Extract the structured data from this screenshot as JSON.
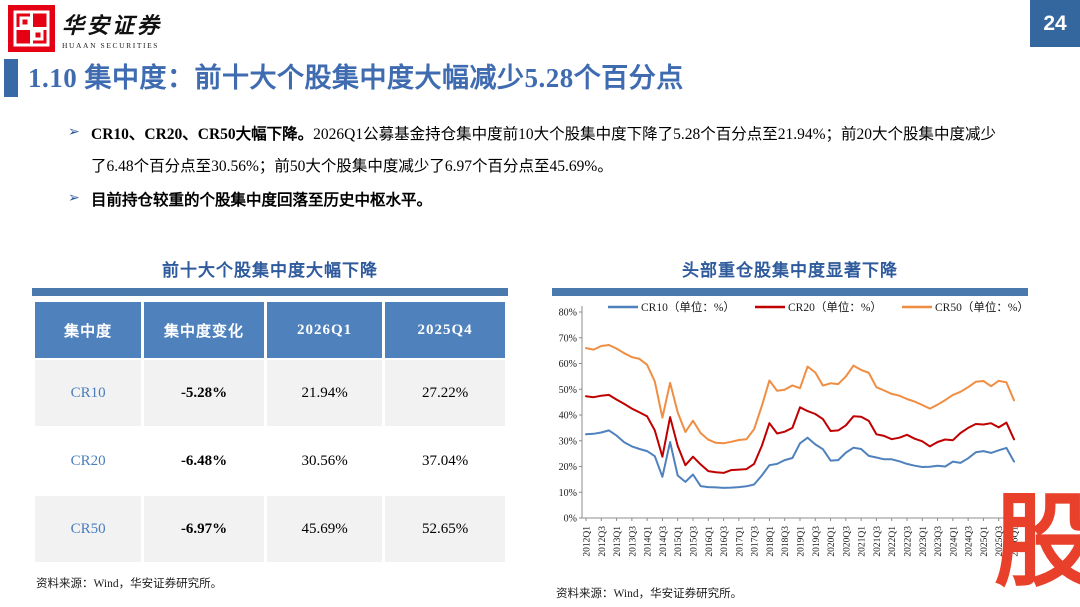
{
  "header": {
    "logo_cn": "华安证券",
    "logo_en": "HUAAN SECURITIES",
    "page_number": "24"
  },
  "title": "1.10 集中度：前十大个股集中度大幅减少5.28个百分点",
  "bullets": {
    "marker": "➢",
    "b1_bold": "CR10、CR20、CR50大幅下降。",
    "b1_text": "2026Q1公募基金持仓集中度前10大个股集中度下降了5.28个百分点至21.94%；前20大个股集中度减少了6.48个百分点至30.56%；前50大个股集中度减少了6.97个百分点至45.69%。",
    "b2_bold": "目前持仓较重的个股集中度回落至历史中枢水平。"
  },
  "table_panel": {
    "title": "前十大个股集中度大幅下降",
    "headers": [
      "集中度",
      "集中度变化",
      "2026Q1",
      "2025Q4"
    ],
    "rows": [
      [
        "CR10",
        "-5.28%",
        "21.94%",
        "27.22%"
      ],
      [
        "CR20",
        "-6.48%",
        "30.56%",
        "37.04%"
      ],
      [
        "CR50",
        "-6.97%",
        "45.69%",
        "52.65%"
      ]
    ],
    "source": "资料来源：Wind，华安证券研究所。"
  },
  "chart_panel": {
    "title": "头部重仓股集中度显著下降",
    "source": "资料来源：Wind，华安证券研究所。"
  },
  "chart_data": {
    "type": "line",
    "title": "头部重仓股集中度显著下降",
    "xlabel": "",
    "ylabel": "",
    "ylim": [
      0,
      80
    ],
    "y_tick_labels": [
      "0%",
      "10%",
      "20%",
      "30%",
      "40%",
      "50%",
      "60%",
      "70%",
      "80%"
    ],
    "gridlines": false,
    "legend_position": "top",
    "x_tick_labels": [
      "2012Q1",
      "2012Q3",
      "2013Q1",
      "2013Q3",
      "2014Q1",
      "2014Q3",
      "2015Q1",
      "2015Q3",
      "2016Q1",
      "2016Q3",
      "2017Q1",
      "2017Q3",
      "2018Q1",
      "2018Q3",
      "2019Q1",
      "2019Q3",
      "2020Q1",
      "2020Q3",
      "2021Q1",
      "2021Q3",
      "2022Q1",
      "2022Q3",
      "2023Q1",
      "2023Q3",
      "2024Q1",
      "2024Q3",
      "2025Q1",
      "2025Q3",
      "2026Q1"
    ],
    "x": [
      "2012Q1",
      "2012Q2",
      "2012Q3",
      "2012Q4",
      "2013Q1",
      "2013Q2",
      "2013Q3",
      "2013Q4",
      "2014Q1",
      "2014Q2",
      "2014Q3",
      "2014Q4",
      "2015Q1",
      "2015Q2",
      "2015Q3",
      "2015Q4",
      "2016Q1",
      "2016Q2",
      "2016Q3",
      "2016Q4",
      "2017Q1",
      "2017Q2",
      "2017Q3",
      "2017Q4",
      "2018Q1",
      "2018Q2",
      "2018Q3",
      "2018Q4",
      "2019Q1",
      "2019Q2",
      "2019Q3",
      "2019Q4",
      "2020Q1",
      "2020Q2",
      "2020Q3",
      "2020Q4",
      "2021Q1",
      "2021Q2",
      "2021Q3",
      "2021Q4",
      "2022Q1",
      "2022Q2",
      "2022Q3",
      "2022Q4",
      "2023Q1",
      "2023Q2",
      "2023Q3",
      "2023Q4",
      "2024Q1",
      "2024Q2",
      "2024Q3",
      "2024Q4",
      "2025Q1",
      "2025Q2",
      "2025Q3",
      "2025Q4",
      "2026Q1"
    ],
    "series": [
      {
        "name": "CR10（单位：%）",
        "color": "#4f81bd",
        "values": [
          32.5,
          32.7,
          33.2,
          34.0,
          32.0,
          29.4,
          27.8,
          26.8,
          26.0,
          24.0,
          16.0,
          29.5,
          16.5,
          14.0,
          16.9,
          12.4,
          12.0,
          11.9,
          11.7,
          11.8,
          12.0,
          12.3,
          13.0,
          16.5,
          20.5,
          21.0,
          22.5,
          23.3,
          29.0,
          31.2,
          28.6,
          26.7,
          22.3,
          22.5,
          25.4,
          27.3,
          26.8,
          24.1,
          23.5,
          22.8,
          22.8,
          22.0,
          21.0,
          20.3,
          19.8,
          19.9,
          20.3,
          20.0,
          21.9,
          21.4,
          23.2,
          25.5,
          26.0,
          25.3,
          26.3,
          27.22,
          21.94
        ]
      },
      {
        "name": "CR20（单位：%）",
        "color": "#c00000",
        "values": [
          47.3,
          46.9,
          47.5,
          47.8,
          46.0,
          44.3,
          42.5,
          41.0,
          39.5,
          34.0,
          23.8,
          39.2,
          28.0,
          20.5,
          23.8,
          20.8,
          18.2,
          17.8,
          17.5,
          18.6,
          18.8,
          19.0,
          21.0,
          28.0,
          36.8,
          32.8,
          33.5,
          35.0,
          43.0,
          41.5,
          40.4,
          38.4,
          33.8,
          34.0,
          36.0,
          39.5,
          39.3,
          37.7,
          32.5,
          31.9,
          30.6,
          31.2,
          32.3,
          30.8,
          29.8,
          27.8,
          29.5,
          30.5,
          30.2,
          33.0,
          35.0,
          36.5,
          36.3,
          36.8,
          35.2,
          37.04,
          30.56
        ]
      },
      {
        "name": "CR50（单位：%）",
        "color": "#ef8e43",
        "values": [
          66.0,
          65.4,
          66.8,
          67.2,
          65.8,
          64.0,
          62.5,
          61.8,
          59.5,
          53.0,
          39.0,
          52.5,
          41.0,
          33.4,
          37.8,
          33.0,
          30.4,
          29.2,
          29.0,
          29.6,
          30.3,
          30.6,
          34.5,
          43.5,
          53.4,
          49.4,
          49.8,
          51.5,
          50.4,
          58.8,
          56.5,
          51.4,
          52.3,
          52.0,
          55.0,
          59.2,
          57.5,
          56.4,
          50.8,
          49.5,
          48.2,
          47.5,
          46.2,
          45.2,
          43.9,
          42.5,
          44.0,
          45.8,
          47.8,
          49.0,
          50.8,
          52.9,
          53.2,
          51.2,
          53.3,
          52.65,
          45.69
        ]
      }
    ]
  },
  "watermark": "股",
  "colors": {
    "accent_blue": "#3f6bb0",
    "bar_blue": "#4a79ae",
    "table_header_blue": "#4f81bd",
    "logo_red": "#e60013",
    "watermark_red": "#e8402a",
    "page_badge_blue": "#35679f"
  }
}
